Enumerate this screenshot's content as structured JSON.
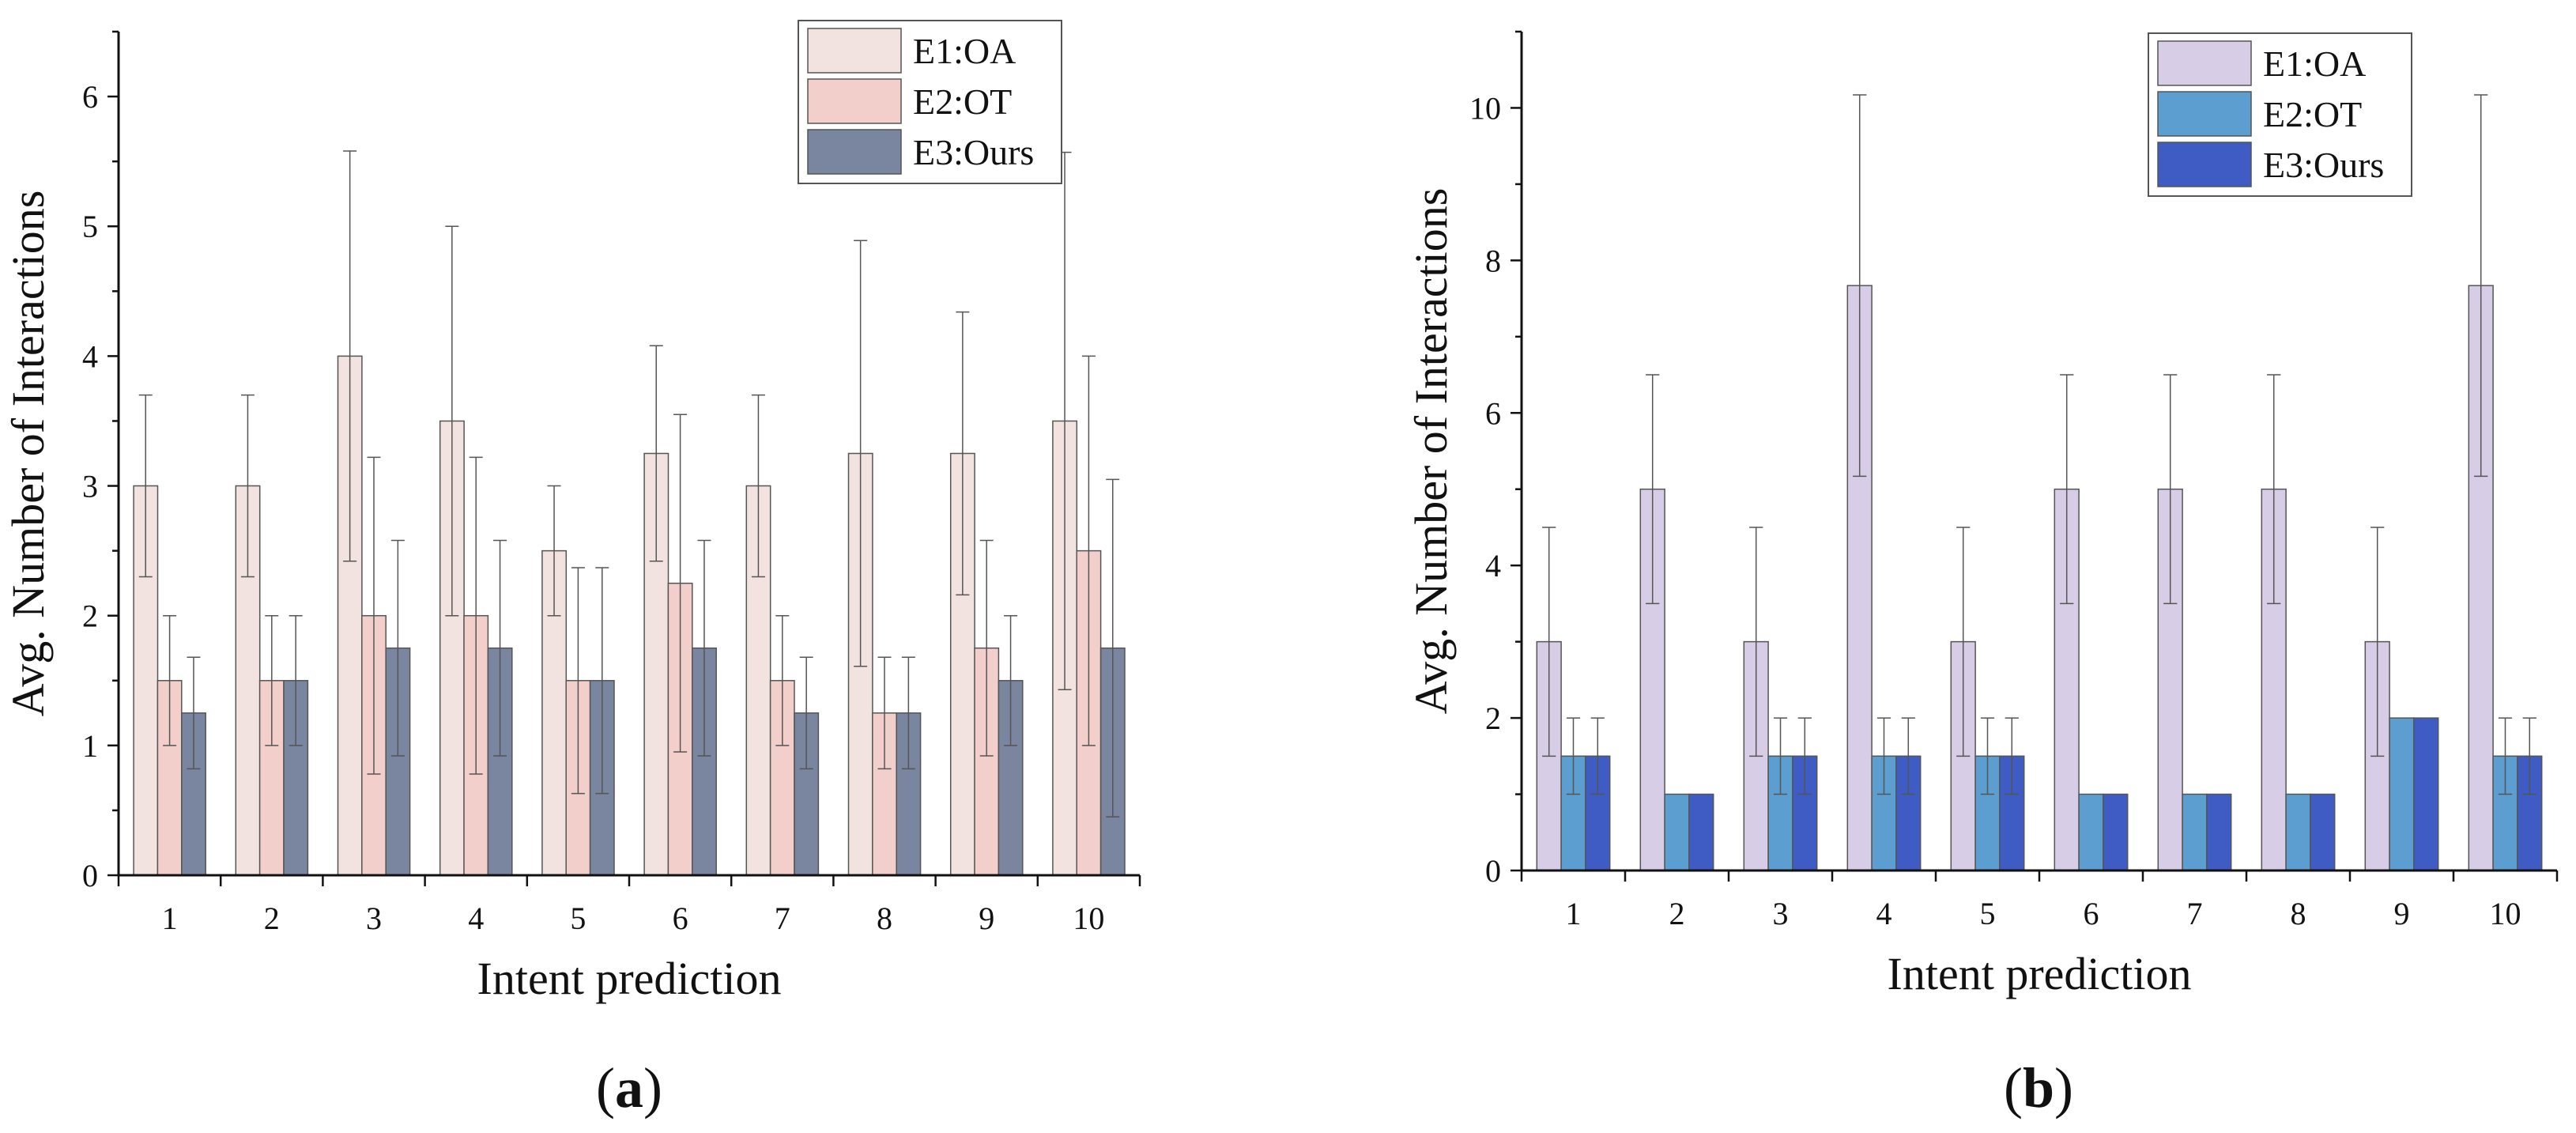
{
  "chart_data": [
    {
      "type": "bar",
      "panel_label": "(a)",
      "panel_letter": "a",
      "xlabel": "Intent prediction",
      "ylabel": "Avg. Number of Interactions",
      "ylim": [
        0,
        6.5
      ],
      "yticks": [
        0,
        1,
        2,
        3,
        4,
        5,
        6
      ],
      "categories": [
        "1",
        "2",
        "3",
        "4",
        "5",
        "6",
        "7",
        "8",
        "9",
        "10"
      ],
      "legend_position": "top-right",
      "series": [
        {
          "name": "E1:OA",
          "color": "#f2e3e0",
          "values": [
            3.0,
            3.0,
            4.0,
            3.5,
            2.5,
            3.25,
            3.0,
            3.25,
            3.25,
            3.5
          ],
          "errors": [
            0.7,
            0.7,
            1.58,
            1.5,
            0.5,
            0.83,
            0.7,
            1.64,
            1.09,
            2.07
          ]
        },
        {
          "name": "E2:OT",
          "color": "#f2cfcb",
          "values": [
            1.5,
            1.5,
            2.0,
            2.0,
            1.5,
            2.25,
            1.5,
            1.25,
            1.75,
            2.5
          ],
          "errors": [
            0.5,
            0.5,
            1.22,
            1.22,
            0.87,
            1.3,
            0.5,
            0.43,
            0.83,
            1.5
          ]
        },
        {
          "name": "E3:Ours",
          "color": "#7a859f",
          "values": [
            1.25,
            1.5,
            1.75,
            1.75,
            1.5,
            1.75,
            1.25,
            1.25,
            1.5,
            1.75
          ],
          "errors": [
            0.43,
            0.5,
            0.83,
            0.83,
            0.87,
            0.83,
            0.43,
            0.43,
            0.5,
            1.3
          ]
        }
      ]
    },
    {
      "type": "bar",
      "panel_label": "(b)",
      "panel_letter": "b",
      "xlabel": "Intent prediction",
      "ylabel": "Avg. Number of Interactions",
      "ylim": [
        0,
        11
      ],
      "yticks": [
        0,
        2,
        4,
        6,
        8,
        10
      ],
      "categories": [
        "1",
        "2",
        "3",
        "4",
        "5",
        "6",
        "7",
        "8",
        "9",
        "10"
      ],
      "legend_position": "top-right",
      "series": [
        {
          "name": "E1:OA",
          "color": "#d8cde6",
          "values": [
            3.0,
            5.0,
            3.0,
            7.67,
            3.0,
            5.0,
            5.0,
            5.0,
            3.0,
            7.67
          ],
          "errors": [
            1.5,
            1.5,
            1.5,
            2.5,
            1.5,
            1.5,
            1.5,
            1.5,
            1.5,
            2.5
          ]
        },
        {
          "name": "E2:OT",
          "color": "#5b9ecf",
          "values": [
            1.5,
            1.0,
            1.5,
            1.5,
            1.5,
            1.0,
            1.0,
            1.0,
            2.0,
            1.5
          ],
          "errors": [
            0.5,
            0,
            0.5,
            0.5,
            0.5,
            0,
            0,
            0,
            0,
            0.5
          ]
        },
        {
          "name": "E3:Ours",
          "color": "#3f5bc4",
          "values": [
            1.5,
            1.0,
            1.5,
            1.5,
            1.5,
            1.0,
            1.0,
            1.0,
            2.0,
            1.5
          ],
          "errors": [
            0.5,
            0,
            0.5,
            0.5,
            0.5,
            0,
            0,
            0,
            0,
            0.5
          ]
        }
      ]
    }
  ]
}
